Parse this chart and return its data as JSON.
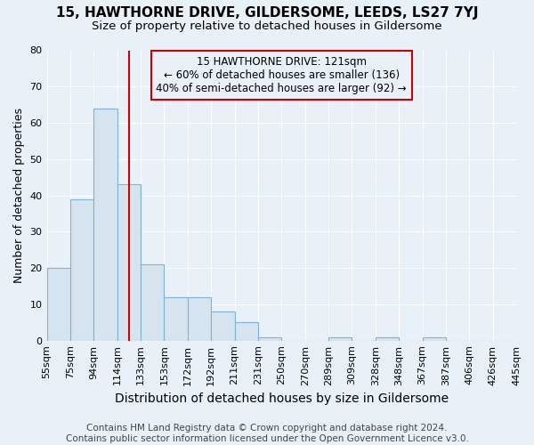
{
  "title": "15, HAWTHORNE DRIVE, GILDERSOME, LEEDS, LS27 7YJ",
  "subtitle": "Size of property relative to detached houses in Gildersome",
  "xlabel": "Distribution of detached houses by size in Gildersome",
  "ylabel": "Number of detached properties",
  "bin_labels": [
    "55sqm",
    "75sqm",
    "94sqm",
    "114sqm",
    "133sqm",
    "153sqm",
    "172sqm",
    "192sqm",
    "211sqm",
    "231sqm",
    "250sqm",
    "270sqm",
    "289sqm",
    "309sqm",
    "328sqm",
    "348sqm",
    "367sqm",
    "387sqm",
    "406sqm",
    "426sqm",
    "445sqm"
  ],
  "bar_heights": [
    20,
    39,
    64,
    43,
    21,
    12,
    12,
    8,
    5,
    1,
    0,
    0,
    1,
    0,
    1,
    0,
    1,
    0,
    0,
    0
  ],
  "bar_color": "#d6e4f0",
  "bar_edgecolor": "#7fb3d3",
  "vline_x": 3.5,
  "vline_color": "#cc0000",
  "annotation_line1": "15 HAWTHORNE DRIVE: 121sqm",
  "annotation_line2": "← 60% of detached houses are smaller (136)",
  "annotation_line3": "40% of semi-detached houses are larger (92) →",
  "annotation_box_edgecolor": "#cc0000",
  "ylim": [
    0,
    80
  ],
  "yticks": [
    0,
    10,
    20,
    30,
    40,
    50,
    60,
    70,
    80
  ],
  "bg_color": "#e8f0f8",
  "grid_color": "#ffffff",
  "title_fontsize": 11,
  "subtitle_fontsize": 9.5,
  "xlabel_fontsize": 10,
  "ylabel_fontsize": 9,
  "tick_fontsize": 8,
  "annotation_fontsize": 8.5,
  "footer_fontsize": 7.5,
  "footer_text": "Contains HM Land Registry data © Crown copyright and database right 2024.\nContains public sector information licensed under the Open Government Licence v3.0."
}
